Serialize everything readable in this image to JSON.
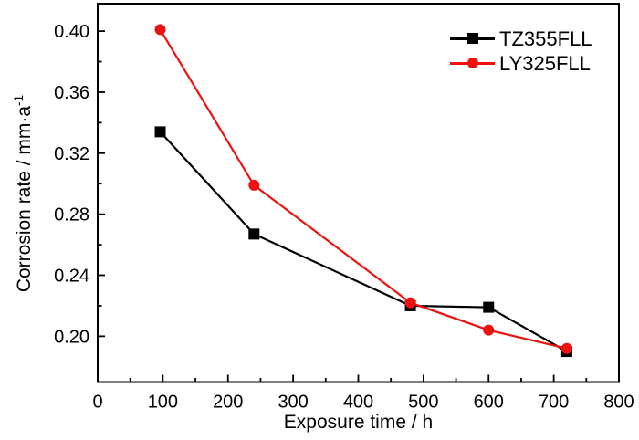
{
  "figure": {
    "background_color": "#ffffff",
    "axis_color": "#000000"
  },
  "chart_data": {
    "type": "line",
    "title": "",
    "xlabel": "Exposure time / h",
    "ylabel": "Corrosion rate / mm·a⁻¹",
    "ylabel_parts": {
      "base": "Corrosion rate / mm·a",
      "sup": "-1"
    },
    "x": [
      96,
      240,
      480,
      600,
      720
    ],
    "series": [
      {
        "name": "TZ355FLL",
        "color": "#000000",
        "marker": "square",
        "values": [
          0.334,
          0.267,
          0.22,
          0.219,
          0.19
        ]
      },
      {
        "name": "LY325FLL",
        "color": "#ee1111",
        "marker": "circle",
        "values": [
          0.401,
          0.299,
          0.222,
          0.204,
          0.192
        ]
      }
    ],
    "xlim": [
      0,
      800
    ],
    "ylim": [
      0.17,
      0.418
    ],
    "x_major_ticks": [
      0,
      100,
      200,
      300,
      400,
      500,
      600,
      700,
      800
    ],
    "x_minor_step": 50,
    "y_major_ticks": [
      0.2,
      0.24,
      0.28,
      0.32,
      0.36,
      0.4
    ],
    "y_minor_step": 0.02,
    "grid": false,
    "legend_position": "top-right",
    "ticks_direction": "in"
  }
}
